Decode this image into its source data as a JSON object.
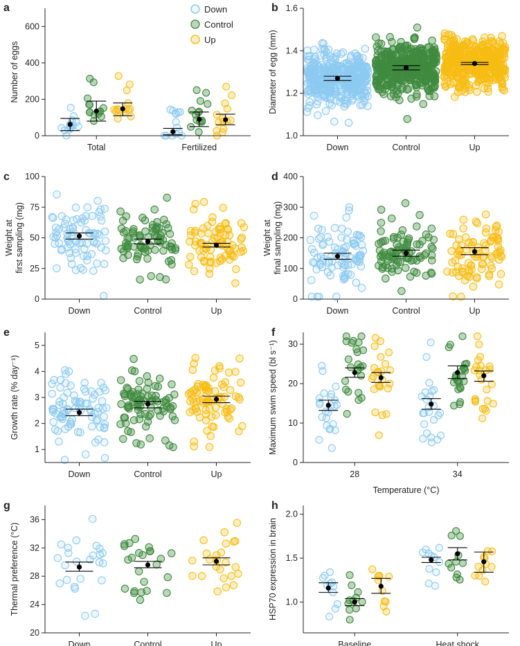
{
  "legend": {
    "items": [
      {
        "label": "Down",
        "color": "#7fc4f0"
      },
      {
        "label": "Control",
        "color": "#3c8a3c"
      },
      {
        "label": "Up",
        "color": "#f5b800"
      }
    ]
  },
  "colors": {
    "Down": "#8ccaf2",
    "Control": "#3e8a3e",
    "Up": "#f7bd13",
    "mean": "#000000"
  },
  "chart_data": [
    {
      "panel": "a",
      "type": "scatter",
      "ylabel": "Number of eggs",
      "xlabel": "",
      "ylim": [
        0,
        700
      ],
      "yticks": [
        0,
        200,
        400,
        600
      ],
      "groups": [
        "Total",
        "Fertilized"
      ],
      "series": [
        {
          "name": "Down",
          "means": [
            62,
            22
          ],
          "ci": [
            [
              28,
              95
            ],
            [
              5,
              40
            ]
          ]
        },
        {
          "name": "Control",
          "means": [
            135,
            90
          ],
          "ci": [
            [
              80,
              190
            ],
            [
              50,
              130
            ]
          ]
        },
        {
          "name": "Up",
          "means": [
            148,
            88
          ],
          "ci": [
            [
              110,
              180
            ],
            [
              60,
              118
            ]
          ]
        }
      ]
    },
    {
      "panel": "b",
      "type": "scatter",
      "ylabel": "Diameter of egg (mm)",
      "xlabel": "",
      "ylim": [
        1.0,
        1.6
      ],
      "yticks": [
        "1.0",
        "1.2",
        "1.4",
        "1.6"
      ],
      "categories": [
        "Down",
        "Control",
        "Up"
      ],
      "means": [
        1.27,
        1.32,
        1.34
      ],
      "ci": [
        [
          1.26,
          1.28
        ],
        [
          1.31,
          1.33
        ],
        [
          1.335,
          1.345
        ]
      ]
    },
    {
      "panel": "c",
      "type": "scatter",
      "ylabel": "Weight at first sampling (mg)",
      "ylabel_lines": [
        "Weight at",
        "first sampling (mg)"
      ],
      "xlabel": "",
      "ylim": [
        0,
        100
      ],
      "yticks": [
        0,
        25,
        50,
        75,
        100
      ],
      "categories": [
        "Down",
        "Control",
        "Up"
      ],
      "means": [
        51.5,
        47,
        44
      ],
      "ci": [
        [
          49,
          54
        ],
        [
          45,
          49
        ],
        [
          42.5,
          45.5
        ]
      ]
    },
    {
      "panel": "d",
      "type": "scatter",
      "ylabel": "Weight at final sampling (mg)",
      "ylabel_lines": [
        "Weight at",
        "final sampling (mg)"
      ],
      "xlabel": "",
      "ylim": [
        0,
        400
      ],
      "yticks": [
        0,
        100,
        200,
        300,
        400
      ],
      "categories": [
        "Down",
        "Control",
        "Up"
      ],
      "means": [
        140,
        150,
        155
      ],
      "ci": [
        [
          130,
          150
        ],
        [
          140,
          160
        ],
        [
          145,
          168
        ]
      ]
    },
    {
      "panel": "e",
      "type": "scatter",
      "ylabel": "Growth rate (% day⁻¹)",
      "xlabel": "",
      "ylim": [
        0.5,
        5.5
      ],
      "yticks": [
        1,
        2,
        3,
        4,
        5
      ],
      "categories": [
        "Down",
        "Control",
        "Up"
      ],
      "means": [
        2.42,
        2.75,
        2.93
      ],
      "ci": [
        [
          2.3,
          2.55
        ],
        [
          2.6,
          2.85
        ],
        [
          2.8,
          3.05
        ]
      ]
    },
    {
      "panel": "f",
      "type": "scatter",
      "ylabel": "Maximum swim speed (bl s⁻¹)",
      "xlabel": "Temperature (°C)",
      "ylim": [
        0,
        33
      ],
      "yticks": [
        0,
        10,
        20,
        30
      ],
      "groups": [
        "28",
        "34"
      ],
      "series": [
        {
          "name": "Down",
          "means": [
            14.5,
            14.8
          ],
          "ci": [
            [
              13.2,
              15.8
            ],
            [
              13.5,
              16.2
            ]
          ]
        },
        {
          "name": "Control",
          "means": [
            22.8,
            22.8
          ],
          "ci": [
            [
              21.6,
              24
            ],
            [
              21.3,
              24.5
            ]
          ]
        },
        {
          "name": "Up",
          "means": [
            21.5,
            22.0
          ],
          "ci": [
            [
              20.3,
              22.8
            ],
            [
              20.6,
              23.2
            ]
          ]
        }
      ]
    },
    {
      "panel": "g",
      "type": "scatter",
      "ylabel": "Thermal preference (°C)",
      "xlabel": "",
      "ylim": [
        20,
        38
      ],
      "yticks": [
        20,
        24,
        28,
        32,
        36
      ],
      "categories": [
        "Down",
        "Control",
        "Up"
      ],
      "means": [
        29.3,
        29.6,
        30.1
      ],
      "ci": [
        [
          28.7,
          30.0
        ],
        [
          29.2,
          30.1
        ],
        [
          29.6,
          30.6
        ]
      ]
    },
    {
      "panel": "h",
      "type": "scatter",
      "ylabel": "HSP70 expression in brain",
      "xlabel": "",
      "ylim": [
        0.65,
        2.1
      ],
      "yticks": [
        "1.0",
        "1.5",
        "2.0"
      ],
      "groups": [
        "Baseline",
        "Heat shock"
      ],
      "series": [
        {
          "name": "Down",
          "means": [
            1.16,
            1.48
          ],
          "ci": [
            [
              1.11,
              1.22
            ],
            [
              1.45,
              1.51
            ]
          ]
        },
        {
          "name": "Control",
          "means": [
            1.0,
            1.55
          ],
          "ci": [
            [
              0.96,
              1.04
            ],
            [
              1.48,
              1.62
            ]
          ]
        },
        {
          "name": "Up",
          "means": [
            1.18,
            1.46
          ],
          "ci": [
            [
              1.1,
              1.27
            ],
            [
              1.34,
              1.57
            ]
          ]
        }
      ]
    }
  ]
}
